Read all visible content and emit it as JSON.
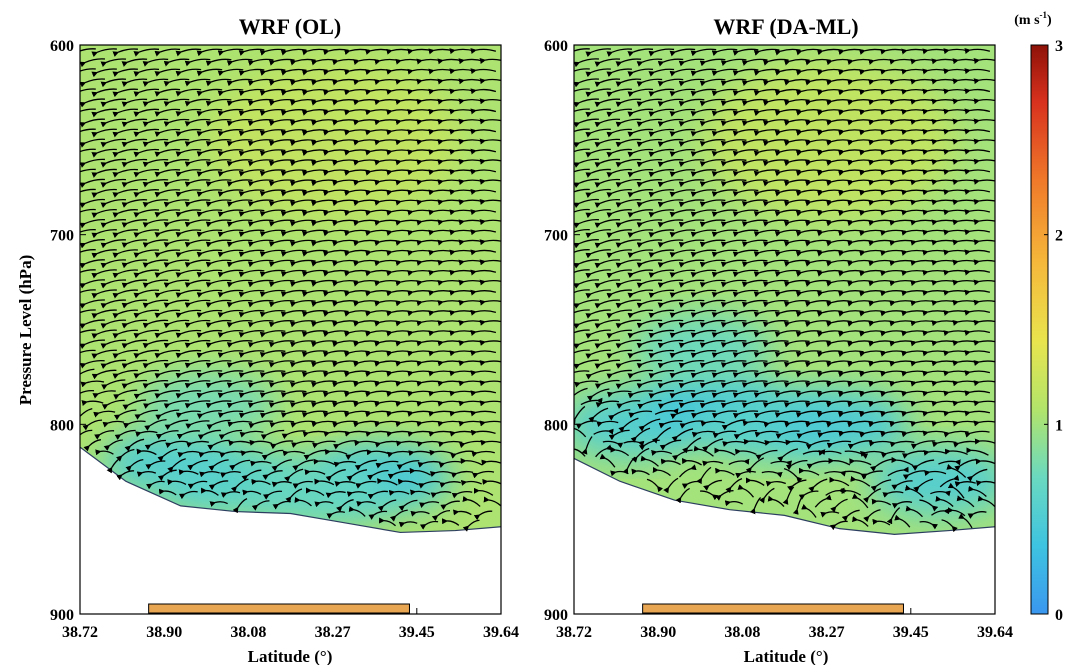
{
  "chart_data": [
    {
      "type": "heatmap",
      "title": "WRF (OL)",
      "xlabel": "Latitude (°)",
      "ylabel": "Pressure Level (hPa)",
      "x_tick_labels": [
        "38.72",
        "38.90",
        "38.08",
        "38.27",
        "39.45",
        "39.64"
      ],
      "y_tick_labels": [
        "600",
        "700",
        "800",
        "900"
      ],
      "y_ticks": [
        600,
        700,
        800,
        900
      ],
      "xlim": [
        38.72,
        39.64
      ],
      "ylim": [
        900,
        600
      ],
      "y_reversed": true,
      "overlay": "wind vectors (streamline arrows), predominantly pointing toward lower latitude",
      "terrain_bottom_hPa": [
        [
          38.72,
          812
        ],
        [
          38.82,
          830
        ],
        [
          38.94,
          843
        ],
        [
          39.06,
          846
        ],
        [
          39.18,
          847
        ],
        [
          39.3,
          852
        ],
        [
          39.42,
          857
        ],
        [
          39.54,
          856
        ],
        [
          39.64,
          854
        ]
      ],
      "surface_bar": {
        "x_start": 38.87,
        "x_end": 39.44,
        "color": "#e8a552"
      },
      "wind_speed_field": {
        "units": "m s-1",
        "general_speed": 1.1,
        "low_speed_zones": [
          {
            "lat": 38.92,
            "p": 820,
            "speed": 0.55
          },
          {
            "lat": 39.05,
            "p": 830,
            "speed": 0.6
          },
          {
            "lat": 39.38,
            "p": 828,
            "speed": 0.45
          },
          {
            "lat": 39.24,
            "p": 835,
            "speed": 0.7
          },
          {
            "lat": 39.0,
            "p": 790,
            "speed": 0.8
          }
        ]
      }
    },
    {
      "type": "heatmap",
      "title": "WRF (DA-ML)",
      "xlabel": "Latitude (°)",
      "ylabel": "",
      "x_tick_labels": [
        "38.72",
        "38.90",
        "38.08",
        "38.27",
        "39.45",
        "39.64"
      ],
      "y_tick_labels": [
        "600",
        "700",
        "800",
        "900"
      ],
      "y_ticks": [
        600,
        700,
        800,
        900
      ],
      "xlim": [
        38.72,
        39.64
      ],
      "ylim": [
        900,
        600
      ],
      "y_reversed": true,
      "overlay": "wind vectors (streamline arrows) with more disturbed flow in the lower layers",
      "terrain_bottom_hPa": [
        [
          38.72,
          818
        ],
        [
          38.82,
          830
        ],
        [
          38.94,
          840
        ],
        [
          39.06,
          845
        ],
        [
          39.18,
          848
        ],
        [
          39.3,
          855
        ],
        [
          39.42,
          858
        ],
        [
          39.54,
          856
        ],
        [
          39.64,
          854
        ]
      ],
      "surface_bar": {
        "x_start": 38.87,
        "x_end": 39.44,
        "color": "#e8a552"
      },
      "wind_speed_field": {
        "units": "m s-1",
        "general_speed": 1.05,
        "low_speed_zones": [
          {
            "lat": 38.85,
            "p": 800,
            "speed": 0.55
          },
          {
            "lat": 39.02,
            "p": 790,
            "speed": 0.45
          },
          {
            "lat": 39.15,
            "p": 800,
            "speed": 0.6
          },
          {
            "lat": 39.3,
            "p": 800,
            "speed": 0.5
          },
          {
            "lat": 39.52,
            "p": 830,
            "speed": 0.55
          },
          {
            "lat": 39.0,
            "p": 760,
            "speed": 0.75
          }
        ]
      }
    }
  ],
  "colorbar": {
    "label": "(m s",
    "label_superscript": "-1",
    "label_close": ")",
    "min": 0,
    "max": 3,
    "tick_labels": [
      "0",
      "1",
      "2",
      "3"
    ],
    "colormap": "jet",
    "colors": [
      "#3a97ef",
      "#3ec4e0",
      "#6ad9c0",
      "#b2e46a",
      "#e9e44e",
      "#f5b73a",
      "#f07a2a",
      "#d8311e",
      "#8e1208"
    ]
  }
}
